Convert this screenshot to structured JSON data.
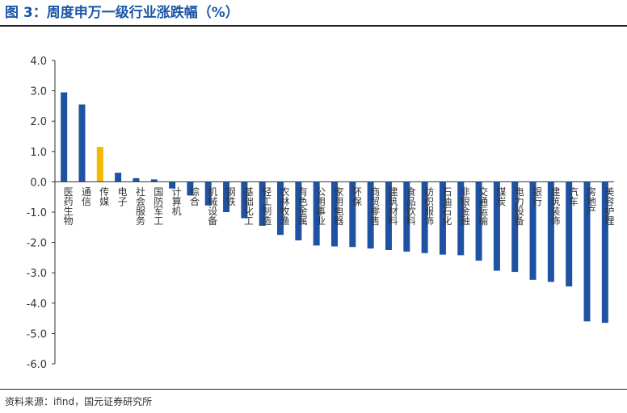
{
  "title": {
    "prefix": "图 3：",
    "text": "周度申万一级行业涨跌幅（%）",
    "color": "#1a56a8"
  },
  "source": "资料来源：ifind，国元证券研究所",
  "colors": {
    "bar": "#1f52a3",
    "highlight": "#f5b800",
    "axis": "#333333",
    "text": "#333333"
  },
  "chart_data": {
    "type": "bar",
    "categories": [
      "医药生物",
      "通信",
      "传媒",
      "电子",
      "社会服务",
      "国防军工",
      "计算机",
      "综合",
      "机械设备",
      "钢铁",
      "基础化工",
      "轻工制造",
      "农林牧渔",
      "有色金属",
      "公用事业",
      "家用电器",
      "环保",
      "商贸零售",
      "建筑材料",
      "食品饮料",
      "纺织服饰",
      "石油石化",
      "非银金融",
      "交通运输",
      "煤炭",
      "电力设备",
      "银行",
      "建筑装饰",
      "汽车",
      "房地产",
      "美容护理"
    ],
    "values": [
      2.95,
      2.55,
      1.15,
      0.3,
      0.12,
      0.08,
      -0.22,
      -0.45,
      -0.78,
      -1.0,
      -1.2,
      -1.45,
      -1.75,
      -1.93,
      -2.1,
      -2.13,
      -2.15,
      -2.2,
      -2.25,
      -2.3,
      -2.35,
      -2.4,
      -2.42,
      -2.6,
      -2.93,
      -2.97,
      -3.23,
      -3.3,
      -3.45,
      -4.6,
      -4.65
    ],
    "highlight_index": 2,
    "ylim": [
      -6.0,
      4.0
    ],
    "yticks": [
      "4.0",
      "3.0",
      "2.0",
      "1.0",
      "0.0",
      "-1.0",
      "-2.0",
      "-3.0",
      "-4.0",
      "-5.0",
      "-6.0"
    ],
    "xlabel": "",
    "ylabel": "",
    "grid": false,
    "legend": "none"
  }
}
